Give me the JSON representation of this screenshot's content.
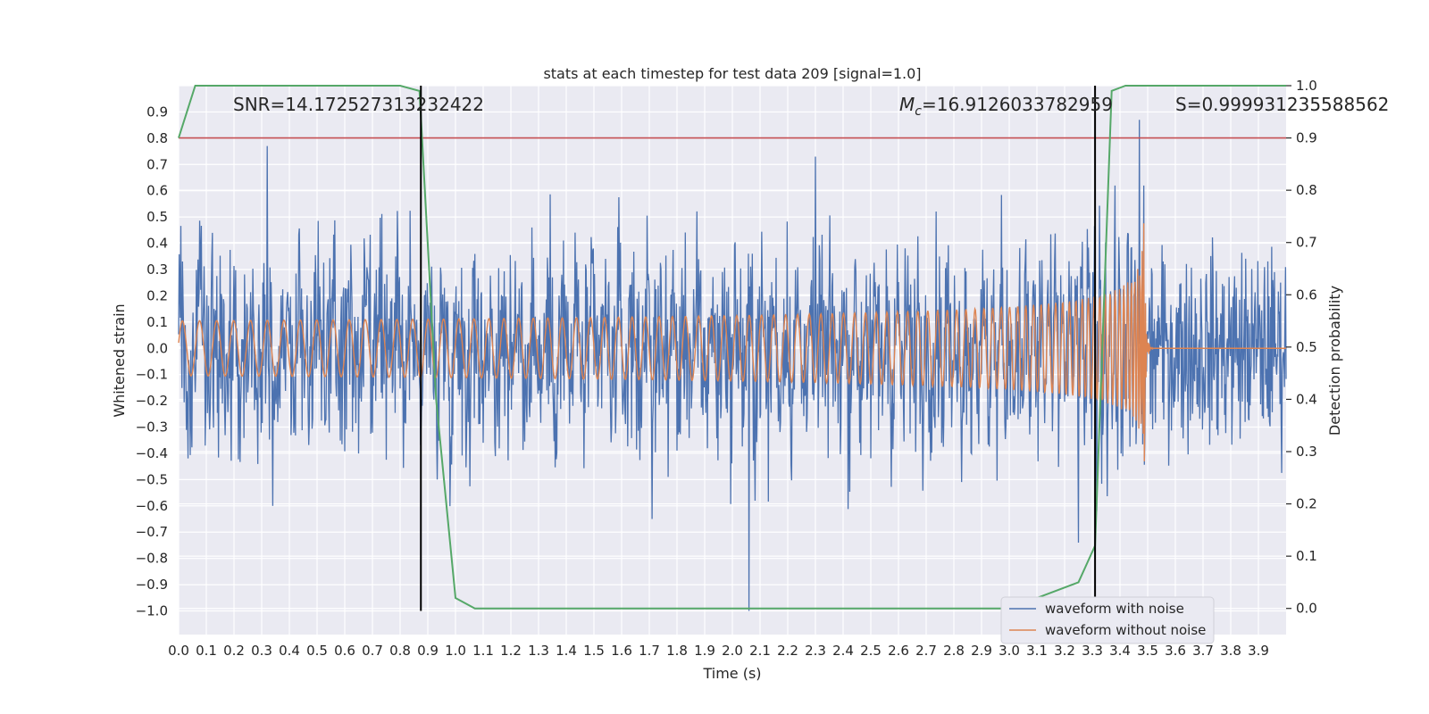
{
  "chart_data": {
    "type": "line",
    "title": "stats at each timestep for test data 209 [signal=1.0]",
    "xlabel": "Time (s)",
    "ylabel": "Whitened strain",
    "y2label": "Detection probability",
    "xlim": [
      0.0,
      4.0
    ],
    "ylim": [
      -1.09,
      1.0
    ],
    "y2lim": [
      -0.05,
      1.0
    ],
    "x_ticks": [
      0.0,
      0.1,
      0.2,
      0.3,
      0.4,
      0.5,
      0.6,
      0.7,
      0.8,
      0.9,
      1.0,
      1.1,
      1.2,
      1.3,
      1.4,
      1.5,
      1.6,
      1.7,
      1.8,
      1.9,
      2.0,
      2.1,
      2.2,
      2.3,
      2.4,
      2.5,
      2.6,
      2.7,
      2.8,
      2.9,
      3.0,
      3.1,
      3.2,
      3.3,
      3.4,
      3.5,
      3.6,
      3.7,
      3.8,
      3.9
    ],
    "x_tick_labels": [
      "0.0",
      "0.1",
      "0.2",
      "0.3",
      "0.4",
      "0.5",
      "0.6",
      "0.7",
      "0.8",
      "0.9",
      "1.0",
      "1.1",
      "1.2",
      "1.3",
      "1.4",
      "1.5",
      "1.6",
      "1.7",
      "1.8",
      "1.9",
      "2.0",
      "2.1",
      "2.2",
      "2.3",
      "2.4",
      "2.5",
      "2.6",
      "2.7",
      "2.8",
      "2.9",
      "3.0",
      "3.1",
      "3.2",
      "3.3",
      "3.4",
      "3.5",
      "3.6",
      "3.7",
      "3.8",
      "3.9"
    ],
    "y_ticks": [
      0.9,
      0.8,
      0.7,
      0.6,
      0.5,
      0.4,
      0.3,
      0.2,
      0.1,
      0.0,
      -0.1,
      -0.2,
      -0.3,
      -0.4,
      -0.5,
      -0.6,
      -0.7,
      -0.8,
      -0.9,
      -1.0
    ],
    "y_tick_labels": [
      "0.9",
      "0.8",
      "0.7",
      "0.6",
      "0.5",
      "0.4",
      "0.3",
      "0.2",
      "0.1",
      "0.0",
      "−0.1",
      "−0.2",
      "−0.3",
      "−0.4",
      "−0.5",
      "−0.6",
      "−0.7",
      "−0.8",
      "−0.9",
      "−1.0"
    ],
    "y2_ticks": [
      1.0,
      0.9,
      0.8,
      0.7,
      0.6,
      0.5,
      0.4,
      0.3,
      0.2,
      0.1,
      0.0
    ],
    "y2_tick_labels": [
      "1.0",
      "0.9",
      "0.8",
      "0.7",
      "0.6",
      "0.5",
      "0.4",
      "0.3",
      "0.2",
      "0.1",
      "0.0"
    ],
    "grid": true,
    "legend_position": "bottom-right",
    "series": [
      {
        "name": "waveform with noise",
        "color": "#4c72b0",
        "axis": "left",
        "noise_amplitude": 0.4,
        "spikes": [
          {
            "x": 0.32,
            "y": 0.77
          },
          {
            "x": 0.34,
            "y": -0.6
          },
          {
            "x": 2.06,
            "y": -1.0
          },
          {
            "x": 2.3,
            "y": 0.73
          },
          {
            "x": 3.25,
            "y": -0.74
          },
          {
            "x": 3.47,
            "y": 0.87
          },
          {
            "x": 1.71,
            "y": -0.65
          }
        ]
      },
      {
        "name": "waveform without noise",
        "color": "#dd8452",
        "axis": "left",
        "chirp_start_amplitude": 0.02,
        "chirp_peak_amplitude": 0.48,
        "merger_time": 3.49,
        "start_frequency": 16,
        "x_start": 0.0
      },
      {
        "name": "detection probability",
        "color": "#55a868",
        "axis": "right",
        "x": [
          0.0,
          0.06,
          0.12,
          0.2,
          0.8,
          0.87,
          0.93,
          1.0,
          1.07,
          1.2,
          3.0,
          3.25,
          3.31,
          3.37,
          3.42,
          3.5,
          4.0
        ],
        "y": [
          0.9,
          1.0,
          1.0,
          1.0,
          1.0,
          0.99,
          0.4,
          0.02,
          0.0,
          0.0,
          0.0,
          0.05,
          0.12,
          0.99,
          1.0,
          1.0,
          1.0
        ]
      }
    ],
    "threshold_line": {
      "y2": 0.9,
      "color": "#c44e52"
    },
    "vertical_lines": [
      {
        "x": 0.875,
        "color": "#000000"
      },
      {
        "x": 3.31,
        "color": "#000000"
      }
    ],
    "annotations": {
      "snr": "SNR=14.172527313232422",
      "mc_symbol": "M",
      "mc_sub": "c",
      "mc_value": "=16.9126033782959",
      "s": "S=0.999931235588562"
    }
  }
}
